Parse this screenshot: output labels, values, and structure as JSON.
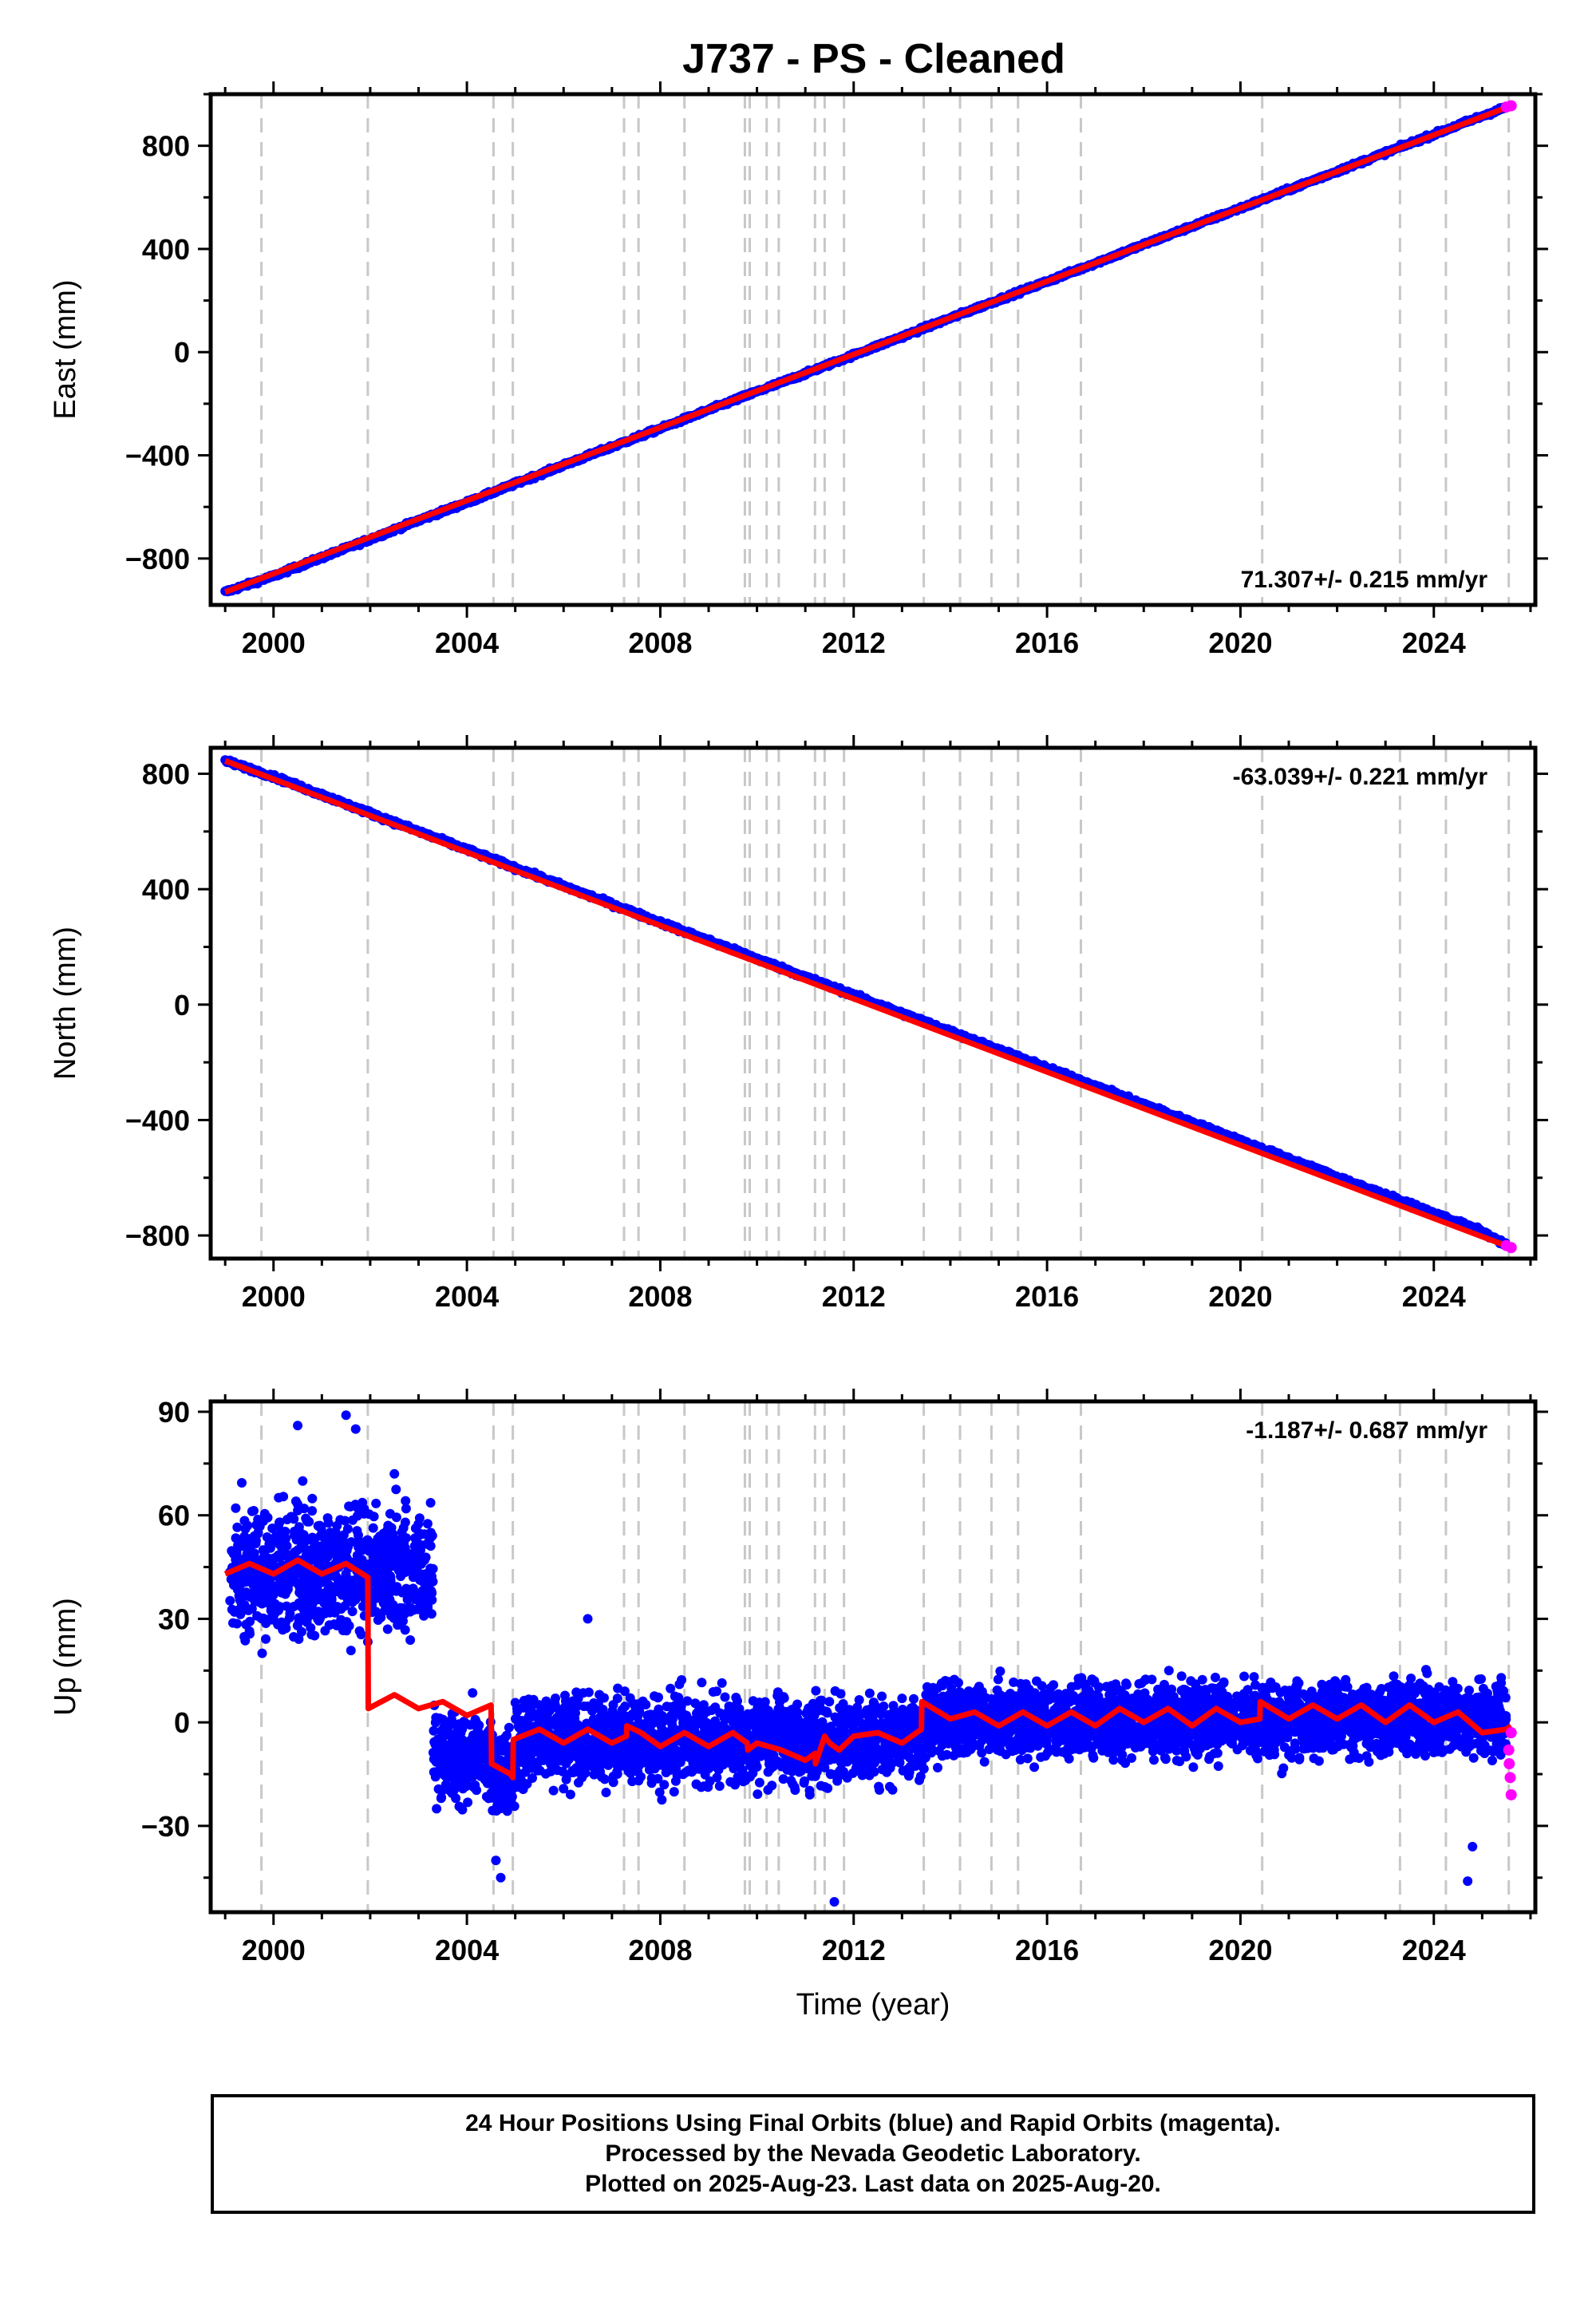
{
  "title": "J737  - PS - Cleaned",
  "footer": {
    "line1": "24 Hour Positions Using Final Orbits (blue) and Rapid Orbits (magenta).",
    "line2": "Processed by the Nevada Geodetic Laboratory.",
    "line3": "Plotted on 2025-Aug-23. Last data on 2025-Aug-20."
  },
  "colors": {
    "final": "#0000ff",
    "rapid": "#ff00ff",
    "model": "#ff0000",
    "steps": "#c8c8c8"
  },
  "chart_data": [
    {
      "type": "scatter",
      "ylabel": "East (mm)",
      "xlabel": "",
      "xlim": [
        1998.7,
        2026.1
      ],
      "ylim": [
        -980,
        1000
      ],
      "xticks": [
        2000,
        2004,
        2008,
        2012,
        2016,
        2020,
        2024
      ],
      "yticks": [
        -800,
        -400,
        0,
        400,
        800
      ],
      "rate_label": "71.307+/- 0.215 mm/yr",
      "rate_position": "bottom-right",
      "series": [
        {
          "role": "final",
          "points": [
            [
              1999.0,
              -930
            ],
            [
              2000.0,
              -868
            ],
            [
              2001.0,
              -796
            ],
            [
              2002.0,
              -725
            ],
            [
              2003.0,
              -652
            ],
            [
              2004.0,
              -583
            ],
            [
              2005.0,
              -510
            ],
            [
              2006.0,
              -438
            ],
            [
              2007.0,
              -367
            ],
            [
              2008.0,
              -296
            ],
            [
              2009.0,
              -224
            ],
            [
              2010.0,
              -153
            ],
            [
              2011.0,
              -83
            ],
            [
              2012.0,
              -11
            ],
            [
              2013.0,
              60
            ],
            [
              2014.0,
              132
            ],
            [
              2015.0,
              203
            ],
            [
              2016.0,
              274
            ],
            [
              2017.0,
              345
            ],
            [
              2018.0,
              417
            ],
            [
              2019.0,
              488
            ],
            [
              2020.0,
              558
            ],
            [
              2021.0,
              630
            ],
            [
              2022.0,
              701
            ],
            [
              2023.0,
              773
            ],
            [
              2024.0,
              844
            ],
            [
              2025.0,
              915
            ],
            [
              2025.5,
              950
            ]
          ]
        },
        {
          "role": "model",
          "points": [
            [
              1999.0,
              -930
            ],
            [
              2025.6,
              955
            ]
          ]
        },
        {
          "role": "rapid",
          "points": [
            [
              2025.5,
              950
            ],
            [
              2025.6,
              955
            ]
          ]
        }
      ]
    },
    {
      "type": "scatter",
      "ylabel": "North (mm)",
      "xlabel": "",
      "xlim": [
        1998.7,
        2026.1
      ],
      "ylim": [
        -880,
        890
      ],
      "xticks": [
        2000,
        2004,
        2008,
        2012,
        2016,
        2020,
        2024
      ],
      "yticks": [
        -800,
        -400,
        0,
        400,
        800
      ],
      "rate_label": "-63.039+/- 0.221 mm/yr",
      "rate_position": "top-right",
      "series": [
        {
          "role": "final",
          "points": [
            [
              1999.0,
              845
            ],
            [
              2000.0,
              790
            ],
            [
              2001.0,
              727
            ],
            [
              2002.0,
              663
            ],
            [
              2003.0,
              600
            ],
            [
              2004.0,
              537
            ],
            [
              2005.0,
              474
            ],
            [
              2006.0,
              411
            ],
            [
              2007.0,
              348
            ],
            [
              2008.0,
              285
            ],
            [
              2009.0,
              222
            ],
            [
              2010.0,
              159
            ],
            [
              2011.0,
              96
            ],
            [
              2012.0,
              33
            ],
            [
              2013.0,
              -30
            ],
            [
              2014.0,
              -93
            ],
            [
              2015.0,
              -156
            ],
            [
              2016.0,
              -219
            ],
            [
              2017.0,
              -282
            ],
            [
              2018.0,
              -345
            ],
            [
              2019.0,
              -408
            ],
            [
              2020.0,
              -471
            ],
            [
              2021.0,
              -534
            ],
            [
              2022.0,
              -597
            ],
            [
              2023.0,
              -660
            ],
            [
              2024.0,
              -723
            ],
            [
              2025.0,
              -786
            ],
            [
              2025.5,
              -835
            ]
          ]
        },
        {
          "role": "model",
          "points": [
            [
              1999.0,
              845
            ],
            [
              2025.6,
              -842
            ]
          ]
        },
        {
          "role": "rapid",
          "points": [
            [
              2025.5,
              -835
            ],
            [
              2025.6,
              -842
            ]
          ]
        }
      ]
    },
    {
      "type": "scatter",
      "ylabel": "Up (mm)",
      "xlabel": "Time (year)",
      "xlim": [
        1998.7,
        2026.1
      ],
      "ylim": [
        -55,
        93
      ],
      "xticks": [
        2000,
        2004,
        2008,
        2012,
        2016,
        2020,
        2024
      ],
      "yticks": [
        -30,
        0,
        30,
        60,
        90
      ],
      "rate_label": "-1.187+/- 0.687 mm/yr",
      "rate_position": "top-right",
      "series": [
        {
          "role": "final",
          "segments": [
            {
              "x": [
                1999.1,
                2003.3
              ],
              "mean": 44,
              "spread": 10
            },
            {
              "x": [
                2003.3,
                2004.4
              ],
              "mean": -10,
              "spread": 7
            },
            {
              "x": [
                2004.4,
                2005.0
              ],
              "mean": -14,
              "spread": 7
            },
            {
              "x": [
                2005.0,
                2013.5
              ],
              "mean": -5,
              "spread": 7
            },
            {
              "x": [
                2013.5,
                2025.5
              ],
              "mean": 1,
              "spread": 6
            }
          ],
          "outliers": [
            [
              2000.5,
              86
            ],
            [
              2001.5,
              89
            ],
            [
              2001.7,
              85
            ],
            [
              2002.5,
              72
            ],
            [
              2004.6,
              -40
            ],
            [
              2004.7,
              -45
            ],
            [
              2006.5,
              30
            ],
            [
              2011.6,
              -52
            ],
            [
              2024.7,
              -46
            ],
            [
              2024.8,
              -36
            ]
          ]
        },
        {
          "role": "model",
          "points": [
            [
              1999.0,
              43
            ],
            [
              1999.5,
              46
            ],
            [
              2000.0,
              43
            ],
            [
              2000.5,
              47
            ],
            [
              2001.0,
              43
            ],
            [
              2001.5,
              46
            ],
            [
              2001.95,
              42
            ],
            [
              2001.96,
              4
            ],
            [
              2002.5,
              8
            ],
            [
              2003.0,
              4
            ],
            [
              2003.5,
              6
            ],
            [
              2004.0,
              2
            ],
            [
              2004.5,
              5
            ],
            [
              2004.51,
              -12
            ],
            [
              2004.9,
              -15
            ],
            [
              2004.95,
              -16
            ],
            [
              2004.96,
              -5
            ],
            [
              2005.5,
              -2
            ],
            [
              2006.0,
              -6
            ],
            [
              2006.5,
              -2
            ],
            [
              2007.0,
              -6
            ],
            [
              2007.3,
              -4
            ],
            [
              2007.31,
              -1
            ],
            [
              2007.6,
              -3
            ],
            [
              2008.0,
              -7
            ],
            [
              2008.5,
              -3
            ],
            [
              2009.0,
              -7
            ],
            [
              2009.5,
              -3
            ],
            [
              2009.8,
              -6
            ],
            [
              2009.81,
              -8
            ],
            [
              2010.0,
              -6
            ],
            [
              2010.5,
              -8
            ],
            [
              2011.0,
              -11
            ],
            [
              2011.2,
              -9
            ],
            [
              2011.21,
              -12
            ],
            [
              2011.4,
              -4
            ],
            [
              2011.5,
              -6
            ],
            [
              2011.7,
              -8
            ],
            [
              2012.0,
              -4
            ],
            [
              2012.5,
              -3
            ],
            [
              2013.0,
              -6
            ],
            [
              2013.4,
              -2
            ],
            [
              2013.41,
              6
            ],
            [
              2014.0,
              1
            ],
            [
              2014.5,
              3
            ],
            [
              2015.0,
              -1
            ],
            [
              2015.5,
              3
            ],
            [
              2016.0,
              -1
            ],
            [
              2016.5,
              3
            ],
            [
              2017.0,
              -1
            ],
            [
              2017.5,
              4
            ],
            [
              2018.0,
              0
            ],
            [
              2018.5,
              4
            ],
            [
              2019.0,
              -1
            ],
            [
              2019.5,
              4
            ],
            [
              2020.0,
              0
            ],
            [
              2020.4,
              1
            ],
            [
              2020.41,
              6
            ],
            [
              2021.0,
              1
            ],
            [
              2021.5,
              5
            ],
            [
              2022.0,
              1
            ],
            [
              2022.5,
              5
            ],
            [
              2023.0,
              0
            ],
            [
              2023.5,
              5
            ],
            [
              2024.0,
              0
            ],
            [
              2024.5,
              3
            ],
            [
              2025.0,
              -3
            ],
            [
              2025.5,
              -2
            ],
            [
              2025.6,
              -1
            ]
          ]
        },
        {
          "role": "rapid",
          "points": [
            [
              2025.55,
              -8
            ],
            [
              2025.56,
              -12
            ],
            [
              2025.58,
              -16
            ],
            [
              2025.6,
              -21
            ],
            [
              2025.6,
              -3
            ]
          ]
        }
      ]
    }
  ],
  "step_epochs": [
    1999.75,
    2001.95,
    2004.55,
    2004.95,
    2007.25,
    2007.55,
    2008.5,
    2009.75,
    2009.85,
    2010.2,
    2010.45,
    2011.2,
    2011.4,
    2011.8,
    2013.45,
    2014.2,
    2014.85,
    2015.4,
    2016.7,
    2020.45,
    2023.3,
    2024.25,
    2025.55
  ]
}
